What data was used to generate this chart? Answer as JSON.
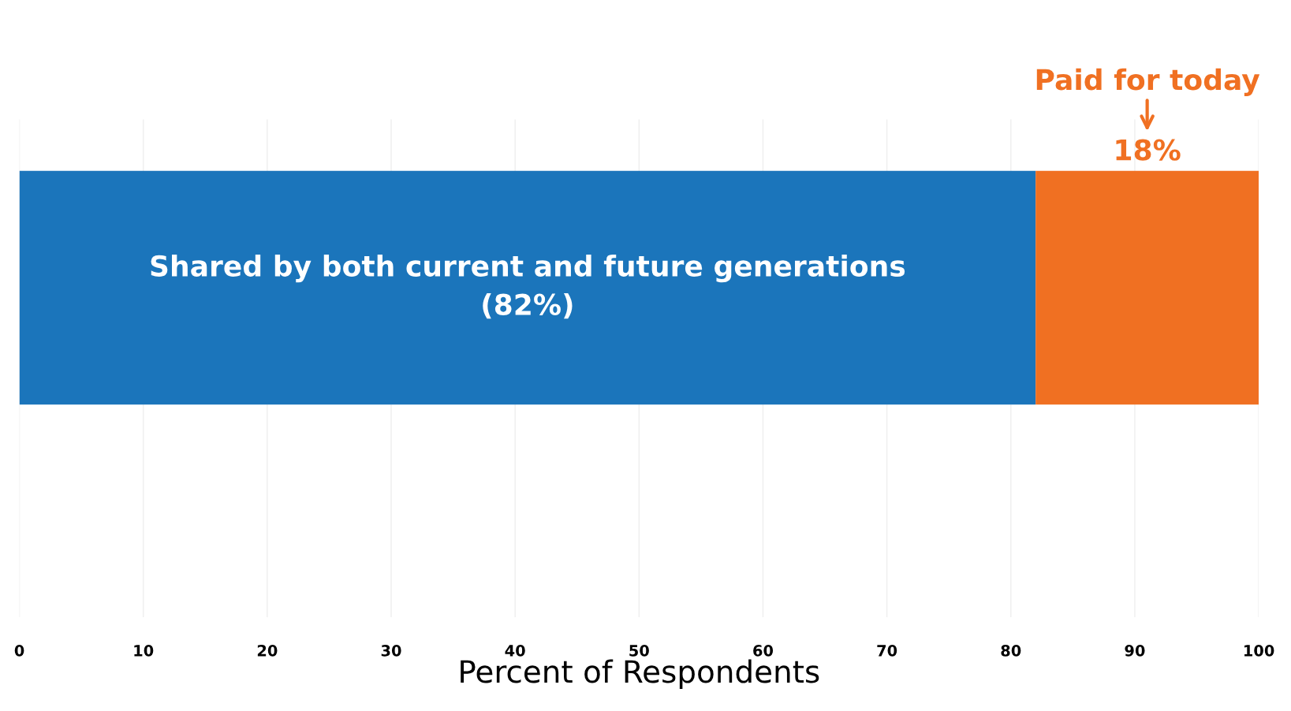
{
  "chart_data": {
    "type": "bar",
    "orientation": "horizontal",
    "stacked": true,
    "categories": [
      null
    ],
    "series": [
      {
        "name": "Shared by both current and future generations",
        "color": "#1b75bb",
        "values": [
          82
        ],
        "value_labels": [
          "(82%)"
        ]
      },
      {
        "name": "Paid for today",
        "color": "#f07022",
        "values": [
          18
        ],
        "value_labels": [
          "18%"
        ]
      }
    ],
    "xlabel": "Percent of Respondents",
    "xlim": [
      0,
      100
    ],
    "xticks": [
      0,
      10,
      20,
      30,
      40,
      50,
      60,
      70,
      80,
      90,
      100
    ],
    "grid": "x",
    "tick_labels": "x",
    "legend": false
  }
}
